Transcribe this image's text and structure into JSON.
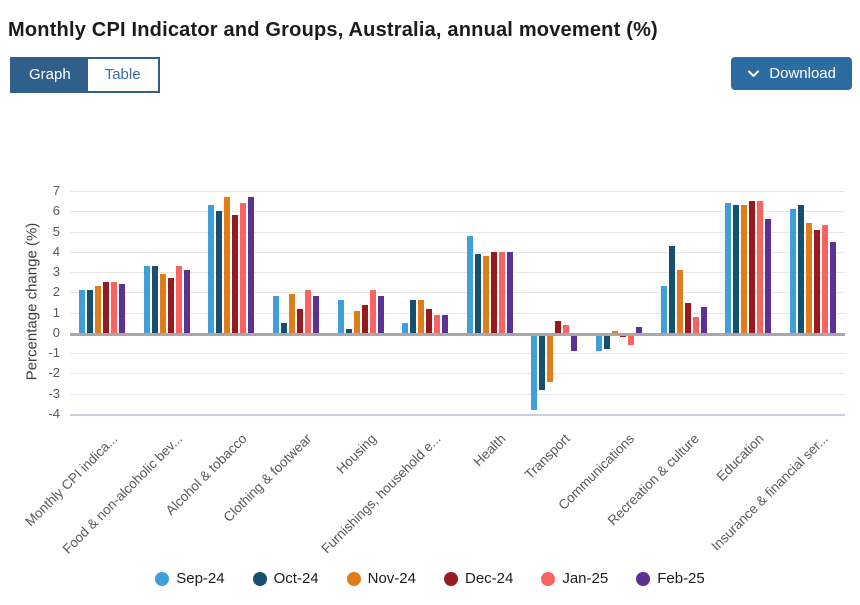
{
  "title": "Monthly CPI Indicator and Groups, Australia, annual movement (%)",
  "toolbar": {
    "graph_label": "Graph",
    "table_label": "Table",
    "download_label": "Download"
  },
  "colors": {
    "toggle_active_bg": "#315f8c",
    "toggle_border": "#315f8c",
    "toggle_inactive_text": "#3c6e9f",
    "download_bg": "#2d6ca0",
    "grid": "#e8e8e8",
    "zero_line": "#a8a8a8",
    "axis_bottom_line": "#c7d0df",
    "tick_text": "#595959",
    "title_text": "#1b1b1b"
  },
  "chart_data": {
    "type": "bar",
    "title": "Monthly CPI Indicator and Groups, Australia, annual movement (%)",
    "xlabel": "",
    "ylabel": "Percentage change (%)",
    "ylim": [
      -4,
      7
    ],
    "y_ticks": [
      7,
      6,
      5,
      4,
      3,
      2,
      1,
      0,
      -1,
      -2,
      -3,
      -4
    ],
    "grid": true,
    "legend_position": "bottom",
    "categories": [
      "Monthly CPI indica...",
      "Food & non-alcoholic bev...",
      "Alcohol & tobacco",
      "Clothing & footwear",
      "Housing",
      "Furnishings, household e...",
      "Health",
      "Transport",
      "Communications",
      "Recreation & culture",
      "Education",
      "Insurance & financial ser..."
    ],
    "series": [
      {
        "name": "Sep-24",
        "color": "#3fa0d8",
        "values": [
          2.1,
          3.3,
          6.3,
          1.8,
          1.6,
          0.5,
          4.8,
          -3.8,
          -0.9,
          2.3,
          6.4,
          6.1
        ]
      },
      {
        "name": "Oct-24",
        "color": "#174f70",
        "values": [
          2.1,
          3.3,
          6.0,
          0.5,
          0.2,
          1.6,
          3.9,
          -2.8,
          -0.8,
          4.3,
          6.3,
          6.3
        ]
      },
      {
        "name": "Nov-24",
        "color": "#df7d1b",
        "values": [
          2.3,
          2.9,
          6.7,
          1.9,
          1.1,
          1.6,
          3.8,
          -2.4,
          0.1,
          3.1,
          6.3,
          5.4
        ]
      },
      {
        "name": "Dec-24",
        "color": "#961a20",
        "values": [
          2.5,
          2.7,
          5.8,
          1.2,
          1.4,
          1.2,
          4.0,
          0.6,
          -0.1,
          1.5,
          6.5,
          5.1
        ]
      },
      {
        "name": "Jan-25",
        "color": "#fa6360",
        "values": [
          2.5,
          3.3,
          6.4,
          2.1,
          2.1,
          0.9,
          4.0,
          0.4,
          -0.6,
          0.8,
          6.5,
          5.3
        ]
      },
      {
        "name": "Feb-25",
        "color": "#5c3191",
        "values": [
          2.4,
          3.1,
          6.7,
          1.8,
          1.8,
          0.9,
          4.0,
          -0.9,
          0.3,
          1.3,
          5.6,
          4.5
        ]
      }
    ]
  }
}
